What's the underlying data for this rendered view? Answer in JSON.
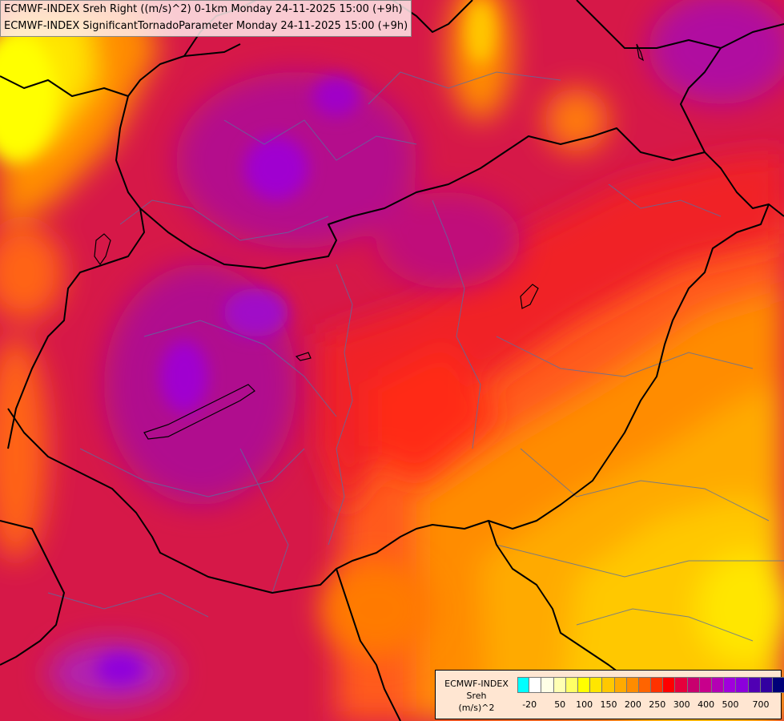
{
  "title": {
    "line1": "ECMWF-INDEX Sreh Right ((m/s)^2) 0-1km Monday 24-11-2025 15:00 (+9h)",
    "line2": "ECMWF-INDEX SignificantTornadoParameter Monday 24-11-2025 15:00 (+9h)"
  },
  "legend": {
    "line1": "ECMWF-INDEX",
    "line2": "Sreh",
    "line3": "(m/s)^2",
    "colors": [
      "#00ffff",
      "#ffffff",
      "#ffffe6",
      "#ffffb3",
      "#ffff66",
      "#ffff00",
      "#ffe600",
      "#ffc800",
      "#ffaa00",
      "#ff8c00",
      "#ff6400",
      "#ff3200",
      "#ff0000",
      "#e6003c",
      "#c8006e",
      "#c8008c",
      "#b400b4",
      "#a000dc",
      "#8c00dc",
      "#5000b4",
      "#3200a0",
      "#000078"
    ],
    "ticks": [
      {
        "label": "-20",
        "index": 0.5
      },
      {
        "label": "50",
        "index": 3
      },
      {
        "label": "100",
        "index": 5
      },
      {
        "label": "150",
        "index": 7
      },
      {
        "label": "200",
        "index": 9
      },
      {
        "label": "250",
        "index": 11
      },
      {
        "label": "300",
        "index": 13
      },
      {
        "label": "400",
        "index": 15
      },
      {
        "label": "500",
        "index": 17
      },
      {
        "label": "700",
        "index": 19.5
      }
    ]
  }
}
